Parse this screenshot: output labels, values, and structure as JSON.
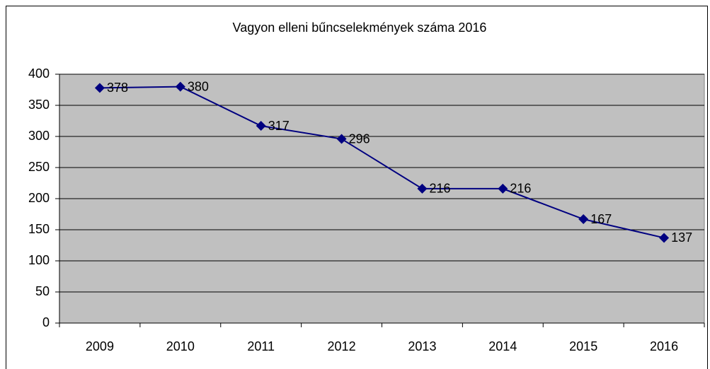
{
  "chart_data": {
    "type": "line",
    "title": "Vagyon elleni bűncselekmények száma 2016",
    "categories": [
      "2009",
      "2010",
      "2011",
      "2012",
      "2013",
      "2014",
      "2015",
      "2016"
    ],
    "values": [
      378,
      380,
      317,
      296,
      216,
      216,
      167,
      137
    ],
    "color": "#000080",
    "ylim": [
      0,
      400
    ],
    "yticks": [
      0,
      50,
      100,
      150,
      200,
      250,
      300,
      350,
      400
    ],
    "grid": true
  }
}
